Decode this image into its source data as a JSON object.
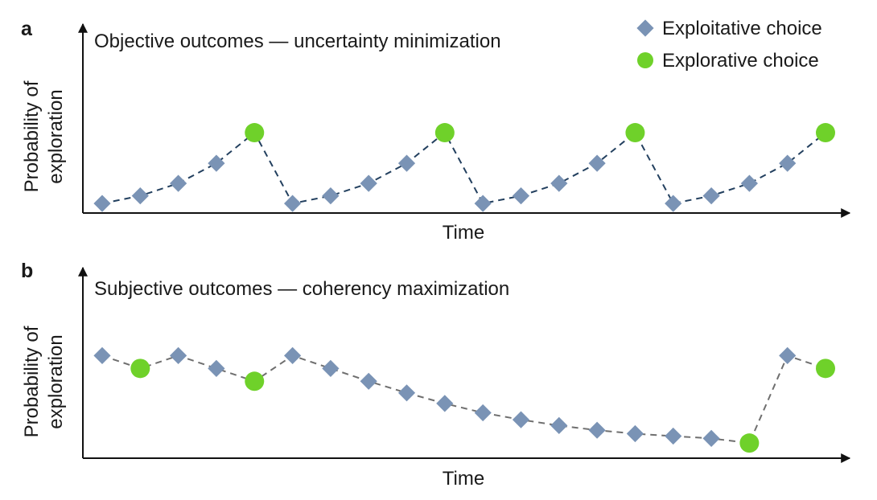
{
  "colors": {
    "exploitative": "#7a93b5",
    "explorative": "#6fd12a",
    "line_a": "#23405f",
    "line_b": "#6f6f6f",
    "axis": "#111111"
  },
  "legend": {
    "exploitative_label": "Exploitative choice",
    "explorative_label": "Explorative choice",
    "exploitative_icon": "diamond-marker",
    "explorative_icon": "circle-marker"
  },
  "chart_data": [
    {
      "type": "line",
      "panel": "a",
      "title": "Objective outcomes — uncertainty minimization",
      "xlabel": "Time",
      "ylabel_line1": "Probability of",
      "ylabel_line2": "exploration",
      "ylim": [
        0,
        1
      ],
      "grid": false,
      "legend_position": "top-right",
      "series": [
        {
          "x": [
            1,
            2,
            3,
            4,
            5,
            6,
            7,
            8,
            9,
            10,
            11,
            12,
            13,
            14,
            15,
            16,
            17,
            18,
            19,
            20
          ],
          "y": [
            0.1,
            0.18,
            0.31,
            0.52,
            0.84,
            0.1,
            0.18,
            0.31,
            0.52,
            0.84,
            0.1,
            0.18,
            0.31,
            0.52,
            0.84,
            0.1,
            0.18,
            0.31,
            0.52,
            0.84
          ],
          "choice": [
            "exploit",
            "exploit",
            "exploit",
            "exploit",
            "explore",
            "exploit",
            "exploit",
            "exploit",
            "exploit",
            "explore",
            "exploit",
            "exploit",
            "exploit",
            "exploit",
            "explore",
            "exploit",
            "exploit",
            "exploit",
            "exploit",
            "explore"
          ]
        }
      ]
    },
    {
      "type": "line",
      "panel": "b",
      "title": "Subjective outcomes — coherency maximization",
      "xlabel": "Time",
      "ylabel_line1": "Probability of",
      "ylabel_line2": "exploration",
      "ylim": [
        0,
        1
      ],
      "grid": false,
      "series": [
        {
          "x": [
            1,
            2,
            3,
            4,
            5,
            6,
            7,
            8,
            9,
            10,
            11,
            12,
            13,
            14,
            15,
            16,
            17,
            18,
            19,
            20
          ],
          "y": [
            0.88,
            0.77,
            0.88,
            0.77,
            0.66,
            0.88,
            0.77,
            0.66,
            0.56,
            0.47,
            0.39,
            0.33,
            0.28,
            0.24,
            0.21,
            0.19,
            0.17,
            0.13,
            0.88,
            0.77
          ],
          "choice": [
            "exploit",
            "explore",
            "exploit",
            "exploit",
            "explore",
            "exploit",
            "exploit",
            "exploit",
            "exploit",
            "exploit",
            "exploit",
            "exploit",
            "exploit",
            "exploit",
            "exploit",
            "exploit",
            "exploit",
            "explore",
            "exploit",
            "explore"
          ]
        }
      ]
    }
  ]
}
